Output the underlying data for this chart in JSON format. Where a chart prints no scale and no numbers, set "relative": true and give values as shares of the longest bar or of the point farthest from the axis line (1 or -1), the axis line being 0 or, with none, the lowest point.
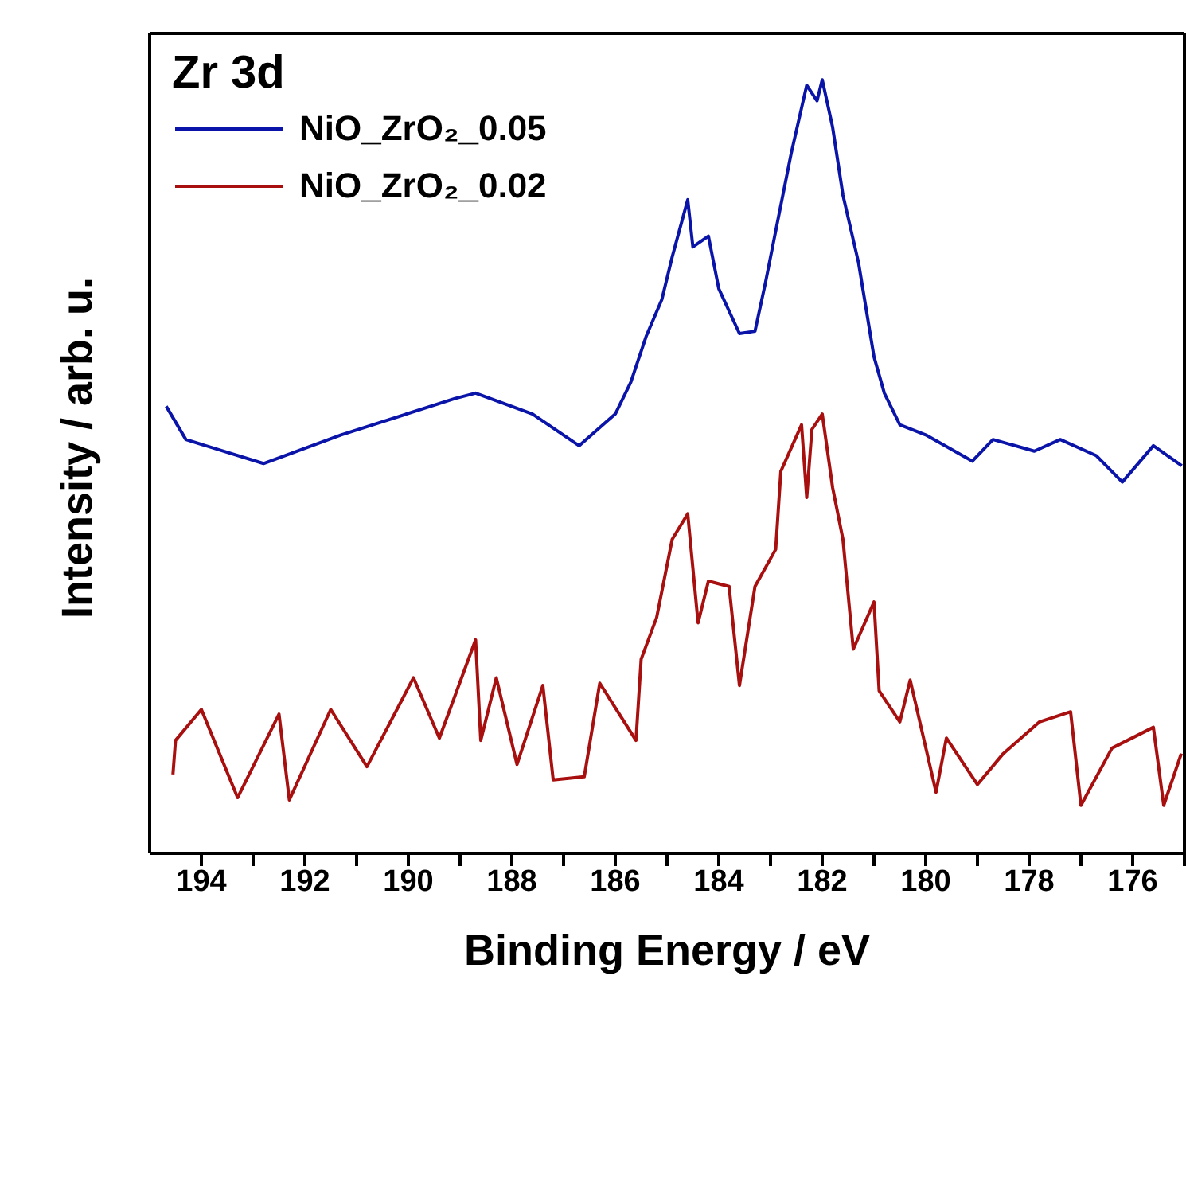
{
  "chart_data": {
    "type": "line",
    "title": "Zr 3d",
    "xlabel": "Binding Energy / eV",
    "ylabel": "Intensity / arb. u.",
    "relative": true,
    "xlim": [
      195,
      175
    ],
    "xticks": [
      194,
      {
        "value": 193,
        "label": null
      },
      192,
      {
        "value": 191,
        "label": null
      },
      190,
      {
        "value": 189,
        "label": null
      },
      188,
      {
        "value": 187,
        "label": null
      },
      186,
      {
        "value": 185,
        "label": null
      },
      184,
      {
        "value": 183,
        "label": null
      },
      182,
      {
        "value": 181,
        "label": null
      },
      180,
      {
        "value": 179,
        "label": null
      },
      178,
      {
        "value": 177,
        "label": null
      },
      176,
      {
        "value": 175,
        "label": null
      }
    ],
    "legend": "top left",
    "marker": "none",
    "line_style": "solid",
    "series": [
      {
        "name": "NiO_ZrO₂_0.05",
        "color": "#0a14a8",
        "x": [
          194.68,
          194.3,
          192.8,
          191.3,
          189.1,
          188.7,
          187.6,
          186.7,
          186.0,
          185.7,
          185.4,
          185.1,
          184.9,
          184.6,
          184.5,
          184.2,
          184.0,
          183.6,
          183.3,
          183.1,
          182.8,
          182.6,
          182.3,
          182.1,
          182.0,
          181.8,
          181.6,
          181.3,
          181.0,
          180.8,
          180.5,
          180.0,
          179.1,
          178.7,
          177.9,
          177.4,
          176.7,
          176.2,
          175.6,
          175.05
        ],
        "values": [
          0.578,
          0.535,
          0.504,
          0.541,
          0.588,
          0.595,
          0.568,
          0.527,
          0.568,
          0.609,
          0.669,
          0.716,
          0.771,
          0.845,
          0.784,
          0.798,
          0.73,
          0.672,
          0.675,
          0.737,
          0.838,
          0.905,
          0.993,
          0.973,
          1.0,
          0.939,
          0.851,
          0.764,
          0.642,
          0.595,
          0.554,
          0.541,
          0.507,
          0.535,
          0.52,
          0.535,
          0.514,
          0.48,
          0.527,
          0.501
        ]
      },
      {
        "name": "NiO_ZrO₂_0.02",
        "color": "#a80f0f",
        "x": [
          194.55,
          194.5,
          194.0,
          193.3,
          192.5,
          192.3,
          191.5,
          190.8,
          189.9,
          189.4,
          188.7,
          188.6,
          188.3,
          187.9,
          187.4,
          187.2,
          186.6,
          186.3,
          185.6,
          185.5,
          185.2,
          184.9,
          184.6,
          184.4,
          184.2,
          183.8,
          183.6,
          183.3,
          182.9,
          182.8,
          182.4,
          182.3,
          182.2,
          182.0,
          181.8,
          181.6,
          181.4,
          181.0,
          180.9,
          180.5,
          180.3,
          179.8,
          179.6,
          179.0,
          178.5,
          177.8,
          177.2,
          177.0,
          176.4,
          175.6,
          175.4,
          175.06
        ],
        "values": [
          0.102,
          0.146,
          0.186,
          0.072,
          0.18,
          0.069,
          0.186,
          0.112,
          0.227,
          0.149,
          0.276,
          0.146,
          0.227,
          0.115,
          0.217,
          0.095,
          0.099,
          0.22,
          0.146,
          0.251,
          0.305,
          0.406,
          0.439,
          0.298,
          0.352,
          0.345,
          0.217,
          0.345,
          0.393,
          0.494,
          0.554,
          0.46,
          0.548,
          0.568,
          0.473,
          0.406,
          0.264,
          0.325,
          0.21,
          0.17,
          0.224,
          0.079,
          0.149,
          0.089,
          0.129,
          0.17,
          0.183,
          0.062,
          0.136,
          0.163,
          0.062,
          0.129
        ]
      }
    ]
  }
}
